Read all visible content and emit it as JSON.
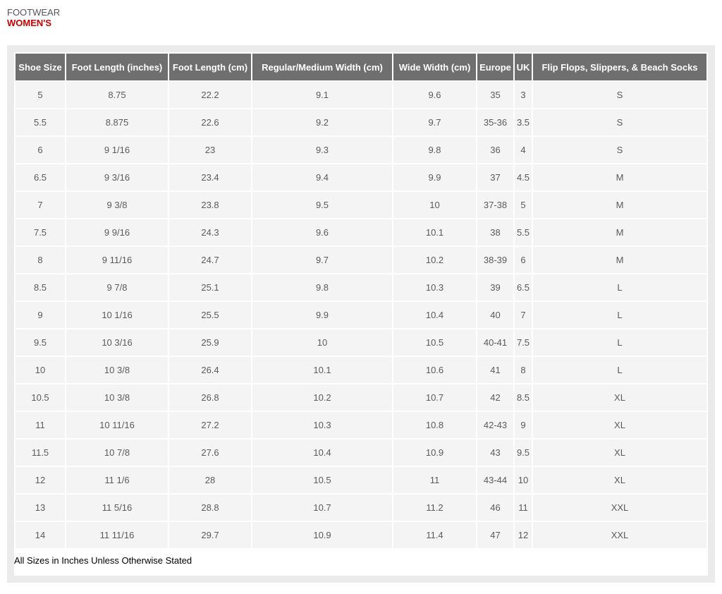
{
  "page": {
    "category": "FOOTWEAR",
    "title": "WOMEN'S",
    "footnote": "All Sizes in Inches Unless Otherwise Stated"
  },
  "colors": {
    "title_red": "#cc0000",
    "category_gray": "#55565a",
    "header_bg": "#6f6f6f",
    "header_text": "#ffffff",
    "cell_bg": "#f4f4f4",
    "cell_text": "#5a5a5a",
    "frame": "#ebebeb",
    "footnote_text": "#000000"
  },
  "chart_data": {
    "type": "table",
    "title": "Women's Footwear Size Chart",
    "columns": [
      "Shoe Size",
      "Foot Length (inches)",
      "Foot Length (cm)",
      "Regular/Medium Width (cm)",
      "Wide Width (cm)",
      "Europe",
      "UK",
      "Flip Flops, Slippers, & Beach Socks"
    ],
    "rows": [
      [
        "5",
        "8.75",
        "22.2",
        "9.1",
        "9.6",
        "35",
        "3",
        "S"
      ],
      [
        "5.5",
        "8.875",
        "22.6",
        "9.2",
        "9.7",
        "35-36",
        "3.5",
        "S"
      ],
      [
        "6",
        "9 1/16",
        "23",
        "9.3",
        "9.8",
        "36",
        "4",
        "S"
      ],
      [
        "6.5",
        "9 3/16",
        "23.4",
        "9.4",
        "9.9",
        "37",
        "4.5",
        "M"
      ],
      [
        "7",
        "9 3/8",
        "23.8",
        "9.5",
        "10",
        "37-38",
        "5",
        "M"
      ],
      [
        "7.5",
        "9 9/16",
        "24.3",
        "9.6",
        "10.1",
        "38",
        "5.5",
        "M"
      ],
      [
        "8",
        "9 11/16",
        "24.7",
        "9.7",
        "10.2",
        "38-39",
        "6",
        "M"
      ],
      [
        "8.5",
        "9 7/8",
        "25.1",
        "9.8",
        "10.3",
        "39",
        "6.5",
        "L"
      ],
      [
        "9",
        "10 1/16",
        "25.5",
        "9.9",
        "10.4",
        "40",
        "7",
        "L"
      ],
      [
        "9.5",
        "10 3/16",
        "25.9",
        "10",
        "10.5",
        "40-41",
        "7.5",
        "L"
      ],
      [
        "10",
        "10 3/8",
        "26.4",
        "10.1",
        "10.6",
        "41",
        "8",
        "L"
      ],
      [
        "10.5",
        "10 3/8",
        "26.8",
        "10.2",
        "10.7",
        "42",
        "8.5",
        "XL"
      ],
      [
        "11",
        "10 11/16",
        "27.2",
        "10.3",
        "10.8",
        "42-43",
        "9",
        "XL"
      ],
      [
        "11.5",
        "10 7/8",
        "27.6",
        "10.4",
        "10.9",
        "43",
        "9.5",
        "XL"
      ],
      [
        "12",
        "11 1/6",
        "28",
        "10.5",
        "11",
        "43-44",
        "10",
        "XL"
      ],
      [
        "13",
        "11 5/16",
        "28.8",
        "10.7",
        "11.2",
        "46",
        "11",
        "XXL"
      ],
      [
        "14",
        "11 11/16",
        "29.7",
        "10.9",
        "11.4",
        "47",
        "12",
        "XXL"
      ]
    ]
  }
}
